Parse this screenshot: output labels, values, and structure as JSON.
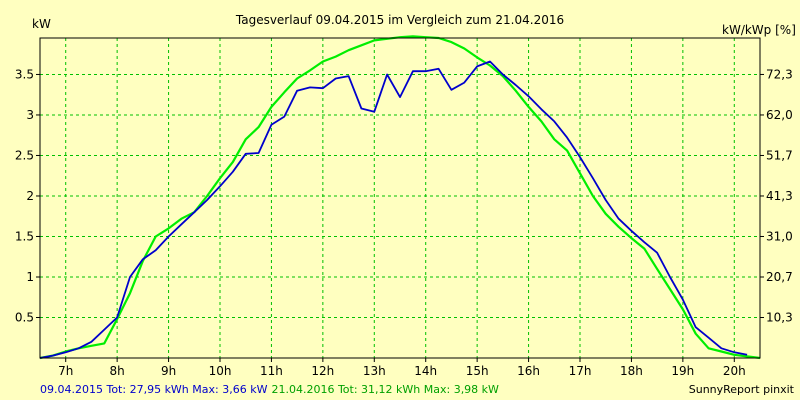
{
  "chart_data": {
    "type": "line",
    "title": "Tagesverlauf 09.04.2015 im Vergleich zum 21.04.2016",
    "ylabel_left": "kW",
    "ylabel_right": "kW/kWp [%]",
    "x_ticks": [
      "7h",
      "8h",
      "9h",
      "10h",
      "11h",
      "12h",
      "13h",
      "14h",
      "15h",
      "16h",
      "17h",
      "18h",
      "19h",
      "20h"
    ],
    "y_ticks_left": [
      "0.5",
      "1",
      "1.5",
      "2",
      "2.5",
      "3",
      "3.5"
    ],
    "y_ticks_right": [
      "10,3",
      "20,7",
      "31,0",
      "41,3",
      "51,7",
      "62,0",
      "72,3"
    ],
    "xlim": [
      6.5,
      20.5
    ],
    "ylim": [
      0,
      3.95
    ],
    "grid": true,
    "colors": {
      "background": "#ffffc0",
      "grid": "#00c000",
      "axis": "#000000"
    },
    "series": [
      {
        "name": "09.04.2015",
        "color": "#0000cc",
        "x": [
          6.5,
          6.75,
          7,
          7.25,
          7.5,
          7.75,
          8,
          8.25,
          8.5,
          8.75,
          9,
          9.25,
          9.5,
          9.75,
          10,
          10.25,
          10.5,
          10.75,
          11,
          11.25,
          11.5,
          11.75,
          12,
          12.25,
          12.5,
          12.75,
          13,
          13.25,
          13.5,
          13.75,
          14,
          14.25,
          14.5,
          14.75,
          15,
          15.25,
          15.5,
          15.75,
          16,
          16.25,
          16.5,
          16.75,
          17,
          17.25,
          17.5,
          17.75,
          18,
          18.25,
          18.5,
          18.75,
          19,
          19.25,
          19.5,
          19.75,
          20,
          20.25
        ],
        "y": [
          0,
          0.03,
          0.07,
          0.12,
          0.2,
          0.35,
          0.5,
          1.0,
          1.22,
          1.33,
          1.5,
          1.65,
          1.8,
          1.95,
          2.12,
          2.3,
          2.52,
          2.53,
          2.88,
          2.98,
          3.3,
          3.34,
          3.33,
          3.45,
          3.48,
          3.08,
          3.04,
          3.5,
          3.22,
          3.54,
          3.54,
          3.57,
          3.31,
          3.4,
          3.6,
          3.66,
          3.5,
          3.37,
          3.23,
          3.07,
          2.92,
          2.72,
          2.48,
          2.22,
          1.95,
          1.72,
          1.57,
          1.43,
          1.3,
          1.0,
          0.72,
          0.38,
          0.25,
          0.12,
          0.07,
          0.04
        ]
      },
      {
        "name": "21.04.2016",
        "color": "#00ee00",
        "x": [
          6.5,
          6.75,
          7,
          7.25,
          7.5,
          7.75,
          8,
          8.25,
          8.5,
          8.75,
          9,
          9.25,
          9.5,
          9.75,
          10,
          10.25,
          10.5,
          10.75,
          11,
          11.25,
          11.5,
          11.75,
          12,
          12.25,
          12.5,
          12.75,
          13,
          13.25,
          13.5,
          13.75,
          14,
          14.25,
          14.5,
          14.75,
          15,
          15.25,
          15.5,
          15.75,
          16,
          16.25,
          16.5,
          16.75,
          17,
          17.25,
          17.5,
          17.75,
          18,
          18.25,
          18.5,
          18.75,
          19,
          19.25,
          19.5,
          19.75,
          20,
          20.25,
          20.5
        ],
        "y": [
          0,
          0.03,
          0.08,
          0.12,
          0.15,
          0.18,
          0.48,
          0.8,
          1.2,
          1.5,
          1.6,
          1.72,
          1.8,
          2.0,
          2.22,
          2.42,
          2.7,
          2.85,
          3.1,
          3.28,
          3.45,
          3.55,
          3.66,
          3.72,
          3.8,
          3.86,
          3.92,
          3.94,
          3.96,
          3.97,
          3.96,
          3.95,
          3.9,
          3.82,
          3.71,
          3.61,
          3.48,
          3.3,
          3.1,
          2.92,
          2.7,
          2.56,
          2.28,
          2.0,
          1.78,
          1.62,
          1.48,
          1.35,
          1.1,
          0.85,
          0.6,
          0.3,
          0.12,
          0.08,
          0.04,
          0.02,
          0
        ]
      }
    ]
  },
  "legend": [
    {
      "date": "09.04.2015",
      "text": " Tot: 27,95 kWh Max: 3,66 kW"
    },
    {
      "date": "21.04.2016",
      "text": " Tot: 31,12 kWh Max: 3,98 kW"
    }
  ],
  "footer": "SunnyReport pinxit"
}
